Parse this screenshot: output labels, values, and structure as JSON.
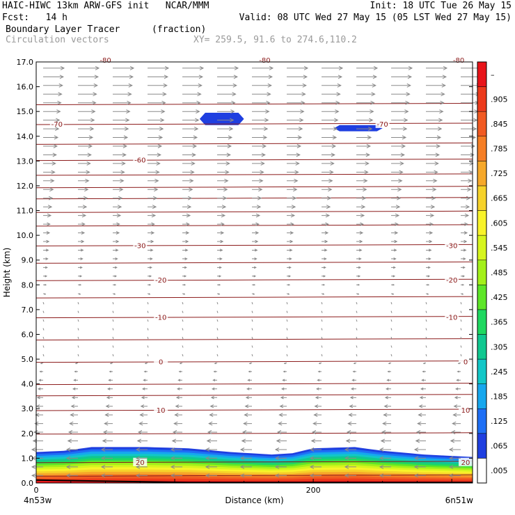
{
  "header": {
    "line1_left": "HAIC-HIWC 13km ARW-GFS init   NCAR/MMM",
    "line1_right": "Init: 18 UTC Tue 26 May 15",
    "line2_left": "Fcst:   14 h",
    "line2_right": "Valid: 08 UTC Wed 27 May 15 (05 LST Wed 27 May 15)",
    "field_name": "Boundary Layer Tracer",
    "field_units": "(fraction)",
    "vector_name": "Circulation vectors",
    "xy_label": "XY= 259.5, 91.6 to 274.6,110.2"
  },
  "colors": {
    "contour": "#8b1a1a",
    "vector": "#8a8a8a",
    "blob": "#1f3fe0",
    "header_gray": "#9a9a9a"
  },
  "chart_data": {
    "type": "heatmap",
    "title": "Boundary Layer Tracer",
    "ylabel": "Height (km)",
    "xlabel": "Distance (km)",
    "xlim": [
      0,
      315
    ],
    "ylim": [
      0,
      17
    ],
    "x_ticks": [
      0,
      200
    ],
    "x_tick_labels": [
      "0",
      "200"
    ],
    "x_end_labels": [
      "4n53w",
      "6n51w"
    ],
    "y_ticks": [
      0,
      1,
      2,
      3,
      4,
      5,
      6,
      7,
      8,
      9,
      10,
      11,
      12,
      13,
      14,
      15,
      16,
      17
    ],
    "y_tick_labels": [
      "0.0",
      "1.0",
      "2.0",
      "3.0",
      "4.0",
      "5.0",
      "6.0",
      "7.0",
      "8.0",
      "9.0",
      "10.0",
      "11.0",
      "12.0",
      "13.0",
      "14.0",
      "15.0",
      "16.0",
      "17.0"
    ],
    "colorbar": {
      "labels": [
        ".005",
        ".065",
        ".125",
        ".185",
        ".245",
        ".305",
        ".365",
        ".425",
        ".485",
        ".545",
        ".605",
        ".665",
        ".725",
        ".785",
        ".845",
        ".905",
        "–"
      ],
      "colors": [
        "#ffffff",
        "#1f3fe0",
        "#1e6ff5",
        "#16a7ee",
        "#12c7c7",
        "#10c890",
        "#1fd860",
        "#5ee628",
        "#a3f01a",
        "#d6f51e",
        "#f8f32a",
        "#f6d22a",
        "#f6a82a",
        "#f57e25",
        "#f15a22",
        "#ec3a1c",
        "#e8141a"
      ]
    },
    "boundary_layer_top_km": [
      [
        0,
        1.25
      ],
      [
        20,
        1.3
      ],
      [
        40,
        1.45
      ],
      [
        80,
        1.45
      ],
      [
        110,
        1.4
      ],
      [
        140,
        1.25
      ],
      [
        170,
        1.15
      ],
      [
        185,
        1.2
      ],
      [
        200,
        1.4
      ],
      [
        230,
        1.45
      ],
      [
        250,
        1.3
      ],
      [
        280,
        1.15
      ],
      [
        315,
        1.05
      ]
    ],
    "high_tracer_patches": [
      {
        "x_km": [
          118,
          150
        ],
        "z_km": [
          14.45,
          14.95
        ]
      },
      {
        "x_km": [
          215,
          250
        ],
        "z_km": [
          14.2,
          14.45
        ]
      }
    ],
    "temperature_contours": [
      {
        "label": "20",
        "z_km": 0.85,
        "label_x_km": [
          75,
          310
        ]
      },
      {
        "label": "10",
        "z_km": 2.95,
        "label_x_km": [
          90,
          310
        ]
      },
      {
        "label": "0",
        "z_km": 4.9,
        "label_x_km": [
          90,
          310
        ]
      },
      {
        "label": "-10",
        "z_km": 6.7,
        "label_x_km": [
          90,
          300
        ]
      },
      {
        "label": "-20",
        "z_km": 8.2,
        "label_x_km": [
          90,
          300
        ]
      },
      {
        "label": "-30",
        "z_km": 9.6,
        "label_x_km": [
          75,
          300
        ]
      },
      {
        "label": "-60",
        "z_km": 13.05,
        "label_x_km": [
          75
        ]
      },
      {
        "label": "-70",
        "z_km": 14.5,
        "label_x_km": [
          15,
          250
        ]
      }
    ],
    "other_contour_levels_km": [
      0.3,
      2.0,
      3.55,
      4.0,
      5.8,
      7.5,
      8.9,
      10.4,
      10.95,
      11.5,
      11.95,
      12.45,
      13.7,
      15.3
    ],
    "top_partial_labels": [
      "-80",
      "-80",
      "-80"
    ]
  }
}
